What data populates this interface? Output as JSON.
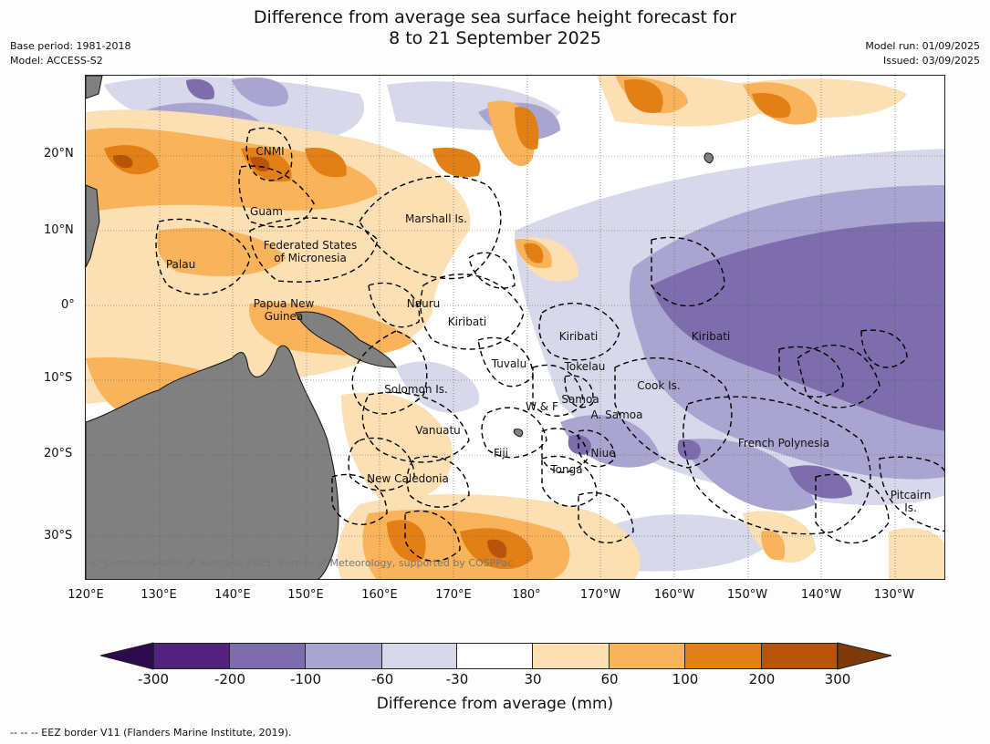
{
  "title_line1": "Difference from average sea surface height forecast for",
  "title_line2": "8 to 21 September 2025",
  "meta_left": [
    "Base period: 1981-2018",
    "Model: ACCESS-S2"
  ],
  "meta_right": [
    "Model run: 01/09/2025",
    "Issued: 03/09/2025"
  ],
  "lat_ticks": [
    "20°N",
    "10°N",
    "0°",
    "10°S",
    "20°S",
    "30°S"
  ],
  "lon_ticks": [
    "120°E",
    "130°E",
    "140°E",
    "150°E",
    "160°E",
    "170°E",
    "180°",
    "170°W",
    "160°W",
    "150°W",
    "140°W",
    "130°W"
  ],
  "places": [
    "CNMI",
    "Guam",
    "Marshall Is.",
    "Federated States\nof Micronesia",
    "Palau",
    "Papua New\nGuinea",
    "Nauru",
    "Kiribati",
    "Kiribati",
    "Kiribati",
    "Tuvalu",
    "Tokelau",
    "Solomon Is.",
    "W & F",
    "Samoa",
    "A. Samoa",
    "Cook Is.",
    "Vanuatu",
    "Fiji",
    "Niue",
    "Tonga",
    "New Caledonia",
    "French Polynesia",
    "Pitcairn\nIs."
  ],
  "copyright": "© Commonwealth of Australia 2025, Bureau of Meteorology, supported by COSPPac",
  "colorbar": {
    "labels": [
      "-300",
      "-200",
      "-100",
      "-60",
      "-30",
      "30",
      "60",
      "100",
      "200",
      "300"
    ],
    "colors": [
      "#53227f",
      "#7d6dad",
      "#aaa4d0",
      "#d7d8ea",
      "#ffffff",
      "#fcdfb2",
      "#f8b35b",
      "#e27f15",
      "#b65509"
    ],
    "under_color": "#2d0a4d",
    "over_color": "#7d3a09",
    "title": "Difference from average (mm)"
  },
  "land_color": "#808080",
  "footer": "--  --  -- EEZ border V11 (Flanders Marine Institute, 2019)."
}
